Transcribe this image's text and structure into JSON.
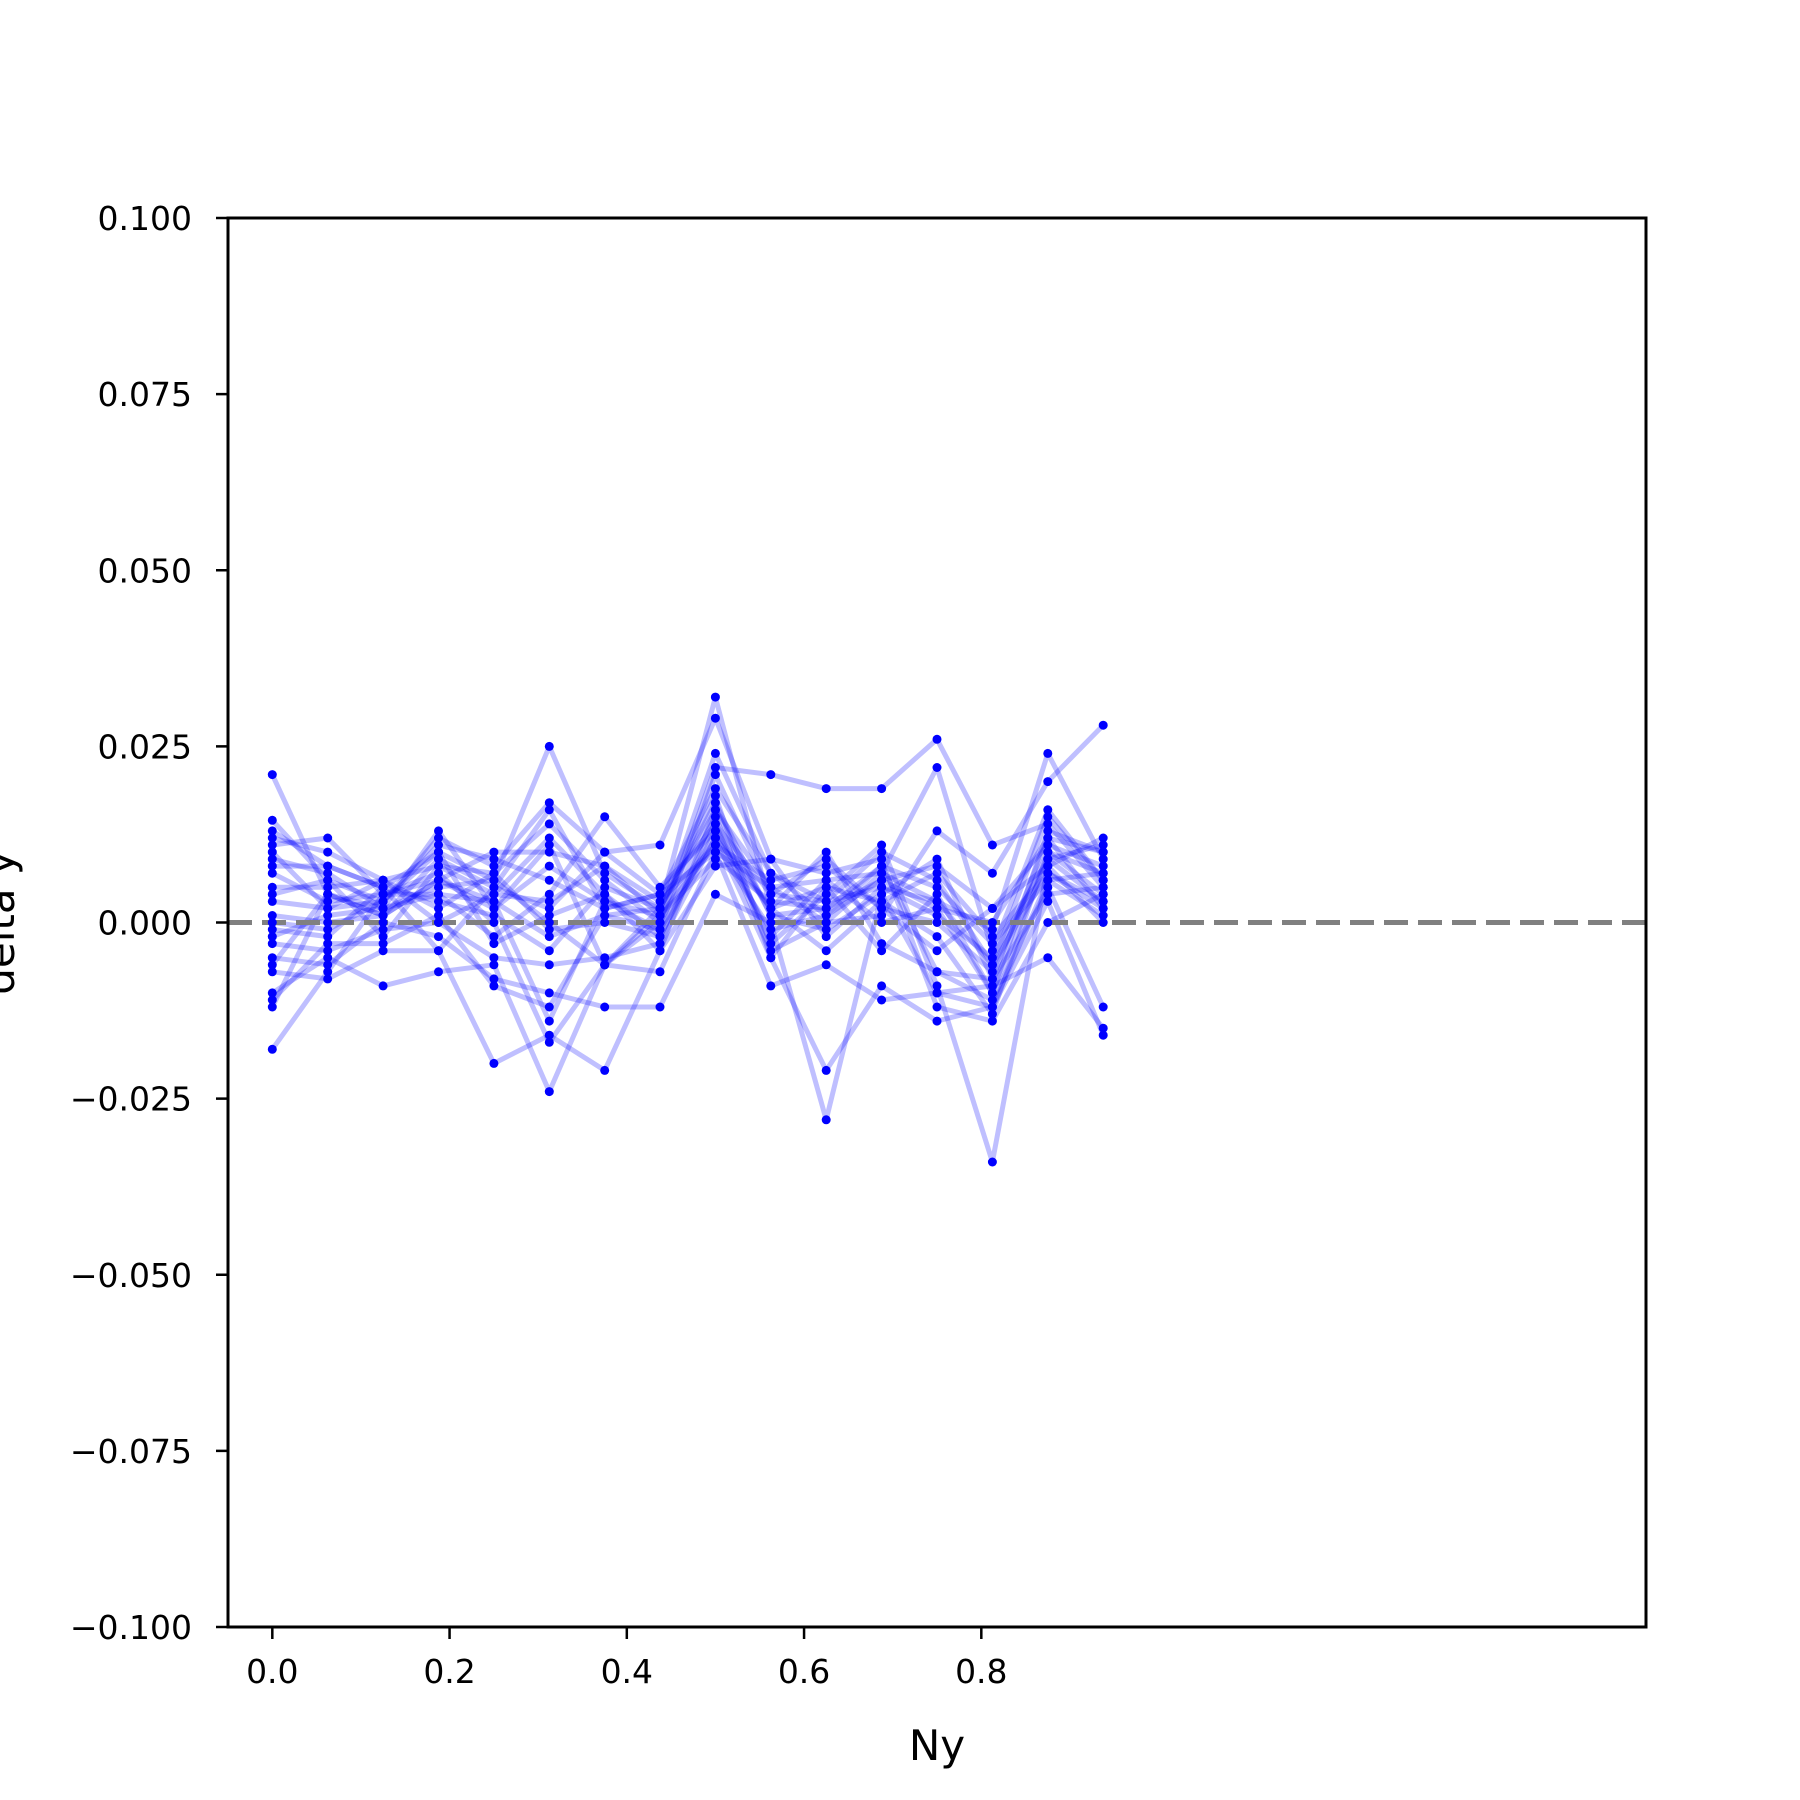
{
  "chart_data": {
    "type": "line",
    "title": "",
    "xlabel": "Ny",
    "ylabel": "delta y",
    "xlim": [
      -0.05,
      1.55
    ],
    "ylim": [
      -0.1,
      0.1
    ],
    "x_ticks": [
      0.0,
      0.2,
      0.4,
      0.6,
      0.8
    ],
    "x_tick_labels": [
      "0.0",
      "0.2",
      "0.4",
      "0.6",
      "0.8"
    ],
    "y_ticks": [
      0.1,
      0.075,
      0.05,
      0.025,
      0.0,
      -0.025,
      -0.05,
      -0.075,
      -0.1
    ],
    "y_tick_labels": [
      "0.100",
      "0.075",
      "0.050",
      "0.025",
      "0.000",
      "−0.025",
      "−0.050",
      "−0.075",
      "−0.100"
    ],
    "reference_line": {
      "y": 0.0,
      "style": "dashed",
      "color": "#808080"
    },
    "marker_color": "#0000ff",
    "line_color": "#0000ff",
    "line_alpha": 0.25,
    "grid": false,
    "x": [
      0.0,
      0.0625,
      0.125,
      0.1875,
      0.25,
      0.3125,
      0.375,
      0.4375,
      0.5,
      0.5625,
      0.625,
      0.6875,
      0.75,
      0.8125,
      0.875,
      0.9375
    ],
    "series": [
      {
        "values": [
          0.021,
          0.004,
          0.001,
          0.006,
          0.003,
          -0.002,
          0.001,
          -0.001,
          0.012,
          0.002,
          0.005,
          0.003,
          -0.002,
          -0.013,
          0.01,
          0.004
        ]
      },
      {
        "values": [
          0.0145,
          0.006,
          0.003,
          0.012,
          0.008,
          0.017,
          0.01,
          0.004,
          0.019,
          0.007,
          0.001,
          0.006,
          0.002,
          -0.01,
          0.009,
          0.003
        ]
      },
      {
        "values": [
          0.013,
          0.008,
          0.005,
          0.01,
          0.006,
          0.025,
          0.007,
          0.002,
          0.016,
          0.001,
          -0.001,
          0.004,
          0.009,
          -0.008,
          0.012,
          0.01
        ]
      },
      {
        "values": [
          0.012,
          0.01,
          0.006,
          0.008,
          0.004,
          0.012,
          0.004,
          -0.002,
          0.014,
          0.004,
          0.003,
          0.01,
          0.006,
          -0.006,
          0.007,
          0.002
        ]
      },
      {
        "values": [
          0.011,
          0.012,
          0.004,
          0.006,
          0.01,
          0.01,
          0.008,
          0.003,
          0.011,
          0.006,
          0.008,
          0.002,
          -0.004,
          0.002,
          0.008,
          0.012
        ]
      },
      {
        "values": [
          0.009,
          0.007,
          0.002,
          0.013,
          0.002,
          0.008,
          0.003,
          0.001,
          0.009,
          0.003,
          0.002,
          0.008,
          0.005,
          -0.003,
          0.006,
          0.007
        ]
      },
      {
        "values": [
          0.007,
          0.003,
          0.004,
          0.004,
          -0.002,
          0.004,
          0.015,
          0.005,
          0.013,
          -0.002,
          0.006,
          0.007,
          0.022,
          -0.004,
          0.016,
          0.006
        ]
      },
      {
        "values": [
          0.005,
          0.005,
          0.006,
          0.002,
          0.007,
          0.014,
          0.006,
          0.0,
          0.022,
          0.021,
          0.019,
          0.019,
          0.026,
          0.011,
          0.014,
          0.005
        ]
      },
      {
        "values": [
          0.003,
          0.002,
          0.003,
          0.011,
          0.009,
          0.006,
          0.002,
          0.004,
          0.01,
          0.005,
          0.0,
          0.001,
          0.013,
          0.007,
          0.02,
          0.028
        ]
      },
      {
        "values": [
          0.001,
          0.0,
          0.001,
          0.009,
          0.005,
          0.002,
          0.01,
          0.011,
          0.029,
          0.009,
          -0.002,
          0.005,
          0.003,
          -0.001,
          0.024,
          0.009
        ]
      },
      {
        "values": [
          -0.001,
          -0.002,
          0.005,
          0.003,
          0.001,
          -0.004,
          0.005,
          0.002,
          0.032,
          0.002,
          0.01,
          -0.003,
          -0.007,
          -0.011,
          0.005,
          -0.012
        ]
      },
      {
        "values": [
          -0.002,
          0.001,
          0.002,
          0.005,
          0.006,
          0.0,
          -0.006,
          0.0,
          0.015,
          -0.003,
          0.004,
          0.011,
          -0.009,
          -0.034,
          0.008,
          0.0
        ]
      },
      {
        "values": [
          -0.003,
          -0.004,
          -0.001,
          0.0,
          -0.005,
          -0.006,
          -0.005,
          -0.003,
          0.012,
          -0.005,
          -0.021,
          -0.009,
          -0.014,
          -0.012,
          0.003,
          -0.016
        ]
      },
      {
        "values": [
          -0.005,
          -0.006,
          0.0,
          -0.002,
          -0.008,
          -0.01,
          -0.012,
          -0.012,
          0.004,
          0.0,
          -0.028,
          0.004,
          -0.01,
          -0.009,
          -0.005,
          -0.015
        ]
      },
      {
        "values": [
          -0.007,
          -0.008,
          -0.004,
          -0.004,
          -0.02,
          -0.016,
          -0.021,
          -0.004,
          0.008,
          0.009,
          0.007,
          0.009,
          -0.012,
          -0.014,
          0.0,
          0.004
        ]
      },
      {
        "values": [
          -0.01,
          -0.005,
          -0.009,
          -0.007,
          -0.006,
          -0.024,
          -0.006,
          -0.007,
          0.01,
          -0.009,
          -0.006,
          -0.011,
          -0.01,
          -0.012,
          0.006,
          0.001
        ]
      },
      {
        "values": [
          -0.011,
          -0.003,
          -0.003,
          0.001,
          -0.009,
          -0.012,
          0.001,
          0.002,
          0.017,
          0.001,
          0.002,
          0.006,
          0.008,
          0.002,
          0.011,
          0.008
        ]
      },
      {
        "values": [
          -0.012,
          0.004,
          0.002,
          0.004,
          0.003,
          -0.014,
          0.003,
          -0.001,
          0.021,
          0.004,
          0.009,
          0.002,
          0.0,
          -0.007,
          0.01,
          0.007
        ]
      },
      {
        "values": [
          -0.018,
          -0.007,
          0.004,
          0.007,
          0.0,
          -0.017,
          -0.006,
          0.002,
          0.018,
          -0.005,
          0.005,
          -0.004,
          0.004,
          -0.01,
          0.013,
          0.01
        ]
      },
      {
        "values": [
          0.01,
          0.002,
          0.006,
          0.0,
          0.004,
          0.003,
          0.008,
          0.001,
          0.024,
          0.007,
          0.003,
          0.005,
          0.001,
          -0.005,
          0.009,
          0.011
        ]
      },
      {
        "values": [
          0.004,
          0.006,
          -0.002,
          0.008,
          0.007,
          -0.001,
          0.0,
          -0.002,
          0.013,
          0.002,
          -0.004,
          0.003,
          0.007,
          -0.002,
          0.007,
          0.003
        ]
      },
      {
        "values": [
          -0.006,
          0.004,
          0.001,
          0.006,
          0.002,
          0.011,
          -0.006,
          0.001,
          0.011,
          -0.001,
          0.001,
          0.008,
          -0.007,
          -0.008,
          0.004,
          0.005
        ]
      },
      {
        "values": [
          0.0,
          -0.001,
          0.003,
          0.01,
          -0.003,
          0.001,
          0.004,
          -0.004,
          0.016,
          0.005,
          0.006,
          0.0,
          0.002,
          0.0,
          0.012,
          0.002
        ]
      },
      {
        "values": [
          0.008,
          0.008,
          0.005,
          -0.004,
          0.005,
          0.016,
          0.002,
          0.004,
          0.014,
          -0.004,
          0.0,
          0.007,
          0.003,
          -0.006,
          0.015,
          0.006
        ]
      }
    ]
  }
}
